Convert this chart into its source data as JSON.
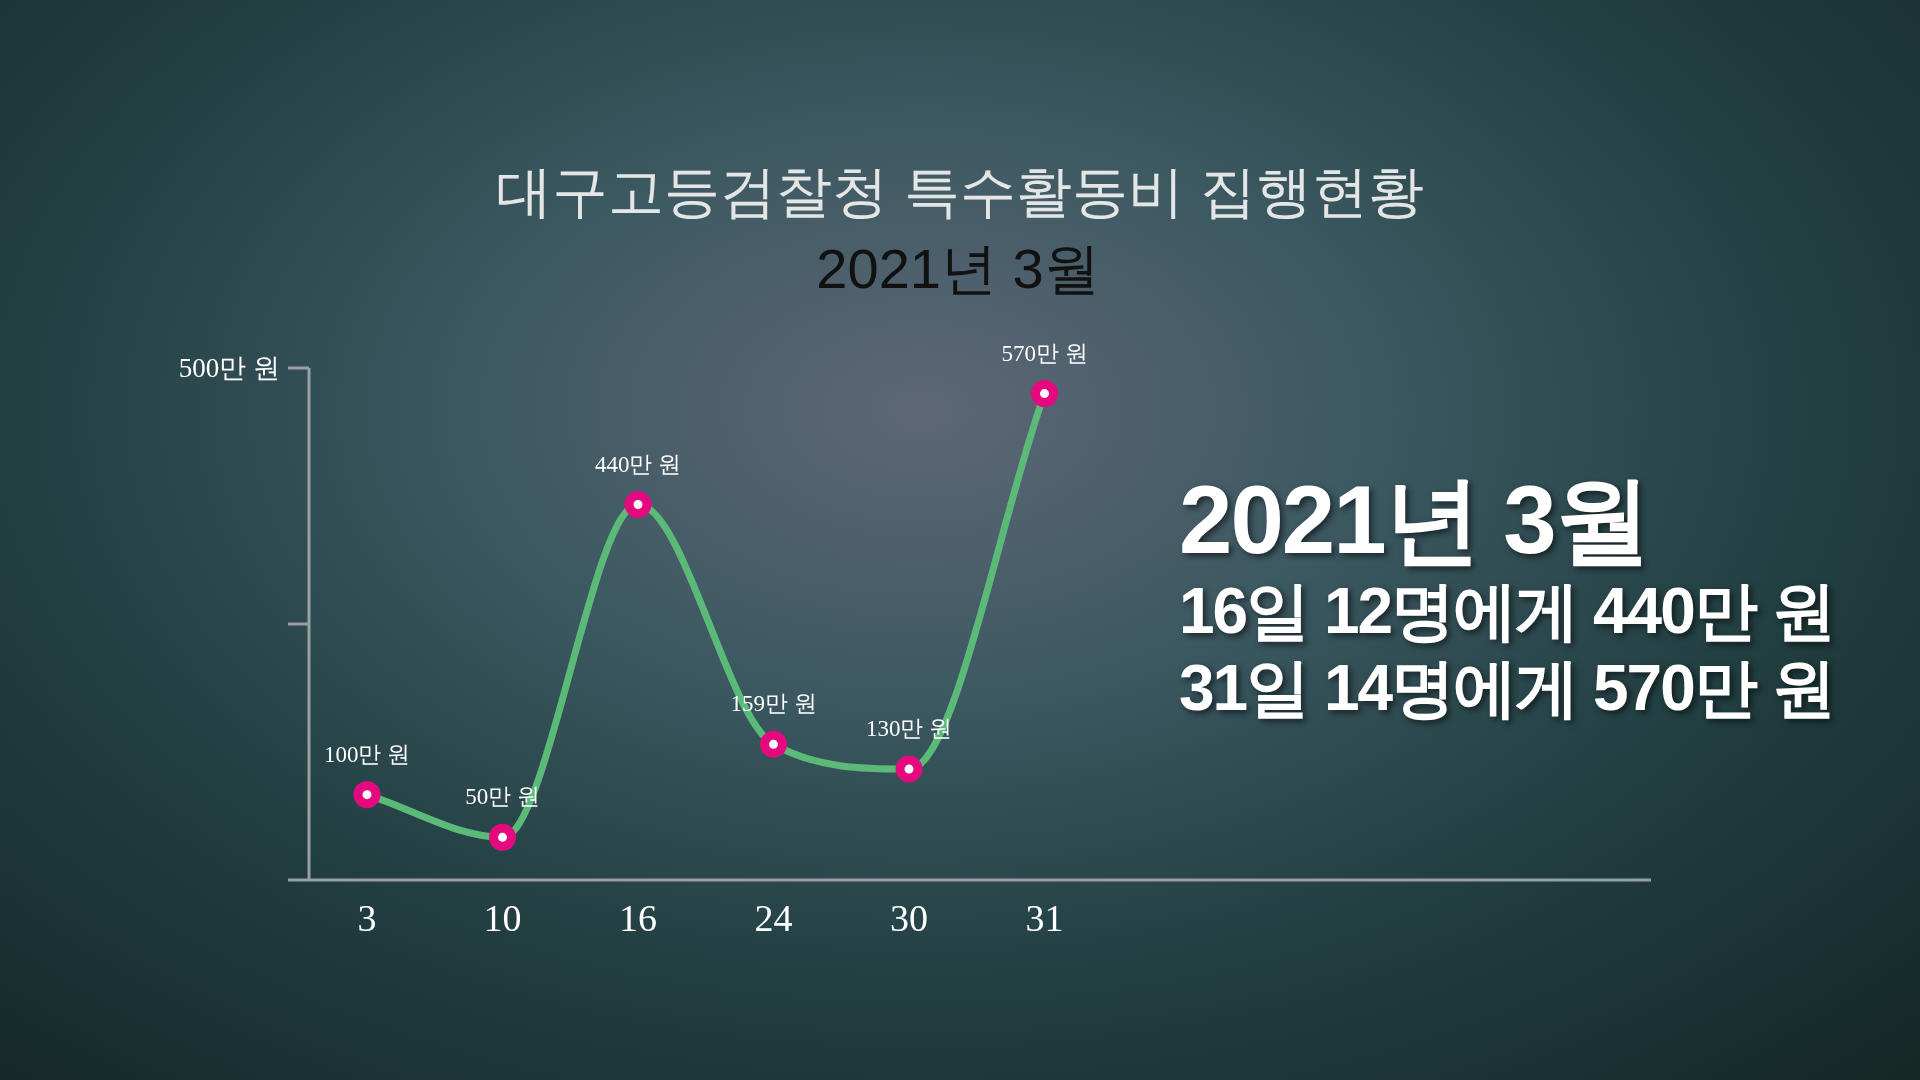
{
  "chart_data": {
    "type": "line",
    "title": "대구고등검찰청 특수활동비 집행현황",
    "subtitle": "2021년 3월",
    "categories": [
      "3",
      "10",
      "16",
      "24",
      "30",
      "31"
    ],
    "values": [
      100,
      50,
      440,
      159,
      130,
      570
    ],
    "value_labels": [
      "100만 원",
      "50만 원",
      "440만 원",
      "159만 원",
      "130만 원",
      "570만 원"
    ],
    "ylim": [
      0,
      600
    ],
    "color": "#5cba78",
    "colors": [
      "#e5097f",
      "#e5097f",
      "#e5097f",
      "#e5097f",
      "#e5097f",
      "#e5097f"
    ],
    "marker": "circle",
    "line_style": "solid",
    "annotations": [
      "500만 원",
      "2021년 3월",
      "16일 12명에게 440만 원",
      "31일 14명에게 570만 원"
    ]
  }
}
